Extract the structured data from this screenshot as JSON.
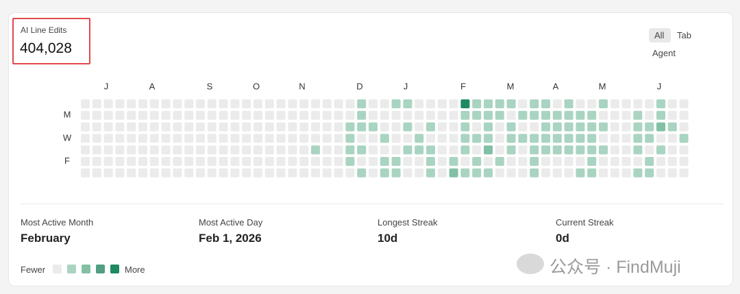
{
  "header": {
    "title": "AI Line Edits",
    "value": "404,028"
  },
  "tabs": [
    "All",
    "Tab",
    "Agent"
  ],
  "heatmap": {
    "months": [
      "J",
      "A",
      "S",
      "O",
      "N",
      "D",
      "J",
      "F",
      "M",
      "A",
      "M",
      "J"
    ],
    "days": [
      "M",
      "W",
      "F"
    ],
    "level_colors": [
      "#ebebeb",
      "#a9d4c1",
      "#82c0a5",
      "#4f9f80",
      "#1e8a5f"
    ],
    "rows": [
      [
        0,
        0,
        0,
        0,
        0,
        0,
        0,
        0,
        0,
        0,
        0,
        0,
        0,
        0,
        0,
        0,
        0,
        0,
        0,
        0,
        0,
        0,
        0,
        0,
        1,
        0,
        0,
        1,
        1,
        0,
        0,
        0,
        0,
        4,
        1,
        1,
        1,
        1,
        0,
        1,
        1,
        0,
        1,
        0,
        0,
        1,
        0,
        0,
        0,
        0,
        1,
        0,
        0
      ],
      [
        0,
        0,
        0,
        0,
        0,
        0,
        0,
        0,
        0,
        0,
        0,
        0,
        0,
        0,
        0,
        0,
        0,
        0,
        0,
        0,
        0,
        0,
        0,
        0,
        1,
        0,
        0,
        0,
        0,
        0,
        0,
        0,
        0,
        1,
        1,
        1,
        1,
        0,
        1,
        1,
        1,
        1,
        1,
        1,
        1,
        0,
        0,
        0,
        1,
        0,
        1,
        0,
        0
      ],
      [
        0,
        0,
        0,
        0,
        0,
        0,
        0,
        0,
        0,
        0,
        0,
        0,
        0,
        0,
        0,
        0,
        0,
        0,
        0,
        0,
        0,
        0,
        0,
        1,
        1,
        1,
        0,
        0,
        1,
        0,
        1,
        0,
        0,
        1,
        0,
        1,
        0,
        1,
        0,
        0,
        1,
        1,
        1,
        1,
        1,
        1,
        0,
        0,
        1,
        1,
        2,
        1,
        0
      ],
      [
        0,
        0,
        0,
        0,
        0,
        0,
        0,
        0,
        0,
        0,
        0,
        0,
        0,
        0,
        0,
        0,
        0,
        0,
        0,
        0,
        0,
        0,
        0,
        1,
        0,
        0,
        1,
        0,
        0,
        1,
        0,
        0,
        0,
        1,
        1,
        1,
        0,
        1,
        1,
        1,
        1,
        1,
        1,
        1,
        1,
        0,
        0,
        0,
        1,
        1,
        0,
        0,
        1
      ],
      [
        0,
        0,
        0,
        0,
        0,
        0,
        0,
        0,
        0,
        0,
        0,
        0,
        0,
        0,
        0,
        0,
        0,
        0,
        0,
        0,
        1,
        0,
        0,
        1,
        1,
        0,
        0,
        0,
        1,
        1,
        1,
        0,
        0,
        1,
        0,
        2,
        0,
        1,
        0,
        1,
        1,
        1,
        1,
        1,
        1,
        1,
        0,
        0,
        1,
        0,
        1,
        0,
        0
      ],
      [
        0,
        0,
        0,
        0,
        0,
        0,
        0,
        0,
        0,
        0,
        0,
        0,
        0,
        0,
        0,
        0,
        0,
        0,
        0,
        0,
        0,
        0,
        0,
        1,
        0,
        0,
        1,
        1,
        0,
        0,
        1,
        0,
        1,
        0,
        1,
        0,
        1,
        0,
        0,
        1,
        0,
        0,
        0,
        0,
        1,
        0,
        0,
        0,
        0,
        1,
        0,
        0,
        0
      ],
      [
        0,
        0,
        0,
        0,
        0,
        0,
        0,
        0,
        0,
        0,
        0,
        0,
        0,
        0,
        0,
        0,
        0,
        0,
        0,
        0,
        0,
        0,
        0,
        0,
        1,
        0,
        1,
        1,
        0,
        0,
        1,
        0,
        2,
        1,
        1,
        1,
        0,
        0,
        0,
        1,
        0,
        0,
        0,
        1,
        1,
        0,
        0,
        0,
        1,
        1,
        0,
        0,
        0
      ]
    ]
  },
  "stats": [
    {
      "label": "Most Active Month",
      "value": "February"
    },
    {
      "label": "Most Active Day",
      "value": "Feb 1, 2026"
    },
    {
      "label": "Longest Streak",
      "value": "10d"
    },
    {
      "label": "Current Streak",
      "value": "0d"
    }
  ],
  "legend": {
    "low": "Fewer",
    "high": "More"
  },
  "watermark": "公众号 · FindMuji"
}
